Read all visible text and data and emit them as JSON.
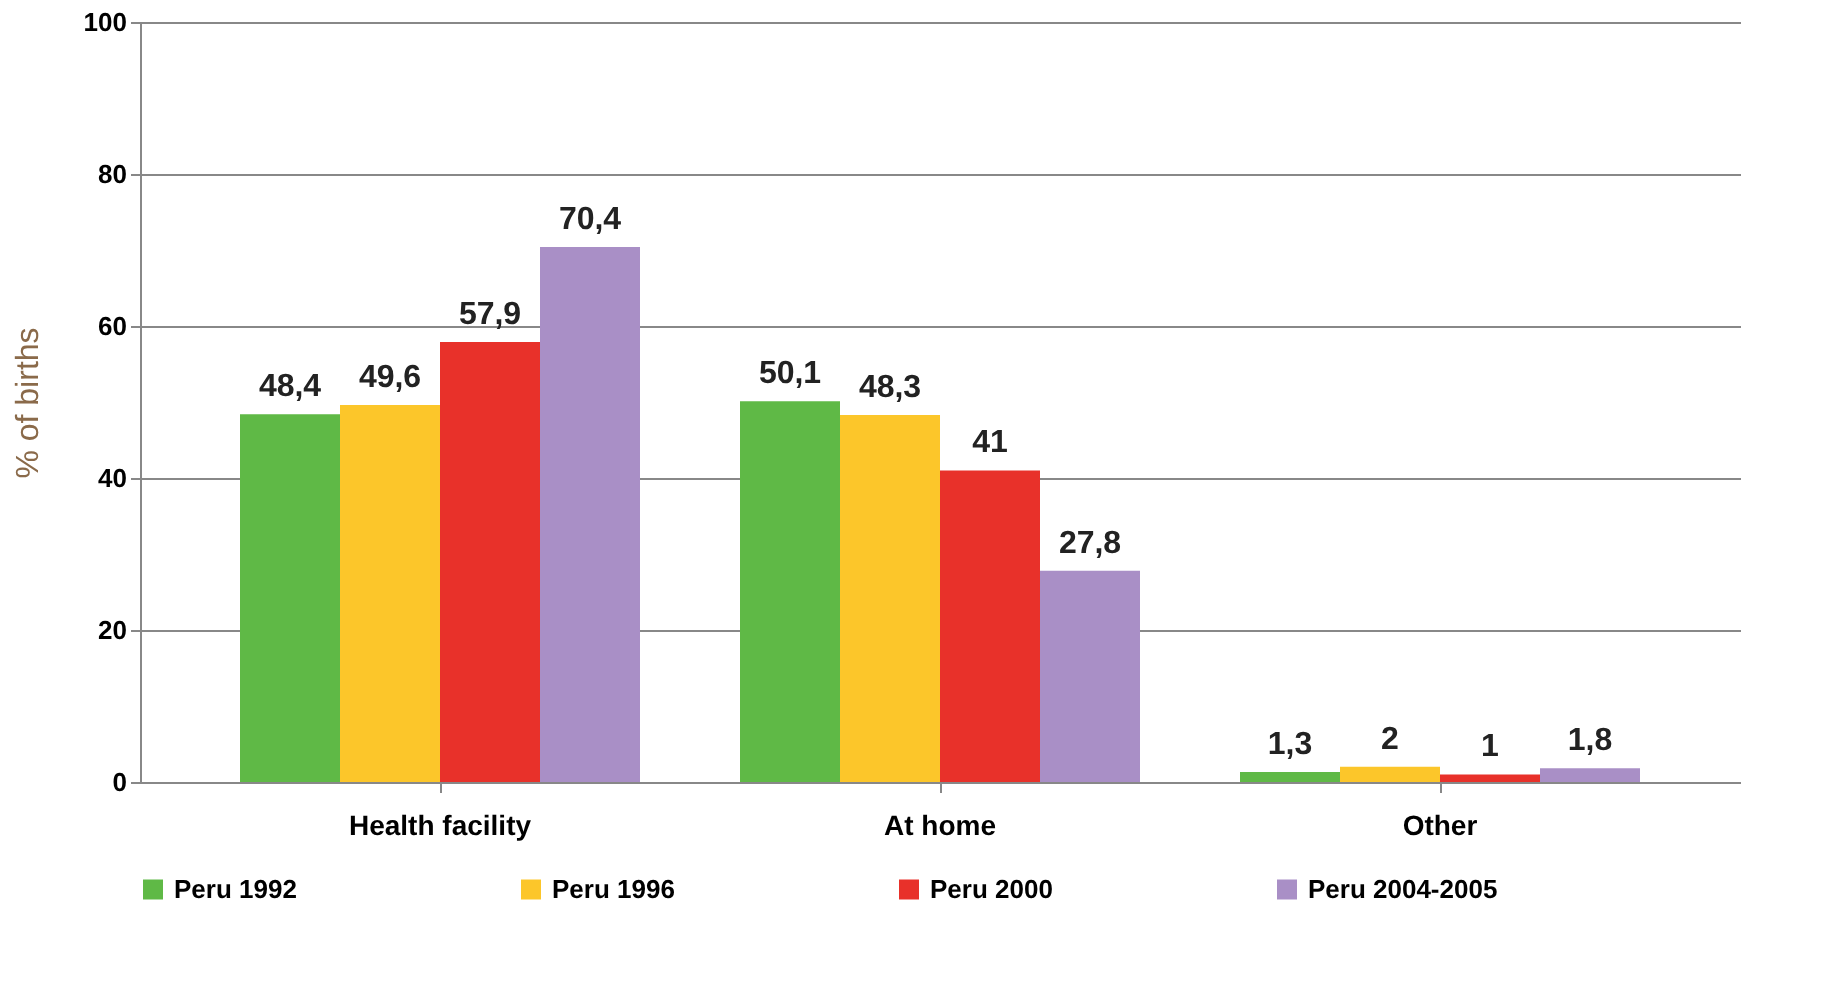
{
  "chart_data": {
    "type": "bar",
    "ylabel": "% of births",
    "categories": [
      "Health facility",
      "At home",
      "Other"
    ],
    "series": [
      {
        "name": "Peru 1992",
        "color": "#5fb946",
        "values": [
          48.4,
          50.1,
          1.3
        ],
        "value_labels": [
          "48,4",
          "50,1",
          "1,3"
        ]
      },
      {
        "name": "Peru 1996",
        "color": "#fcc62a",
        "values": [
          49.6,
          48.3,
          2
        ],
        "value_labels": [
          "49,6",
          "48,3",
          "2"
        ]
      },
      {
        "name": "Peru 2000",
        "color": "#e8312a",
        "values": [
          57.9,
          41,
          1
        ],
        "value_labels": [
          "57,9",
          "41",
          "1"
        ]
      },
      {
        "name": "Peru 2004-2005",
        "color": "#a98fc6",
        "values": [
          70.4,
          27.8,
          1.8
        ],
        "value_labels": [
          "70,4",
          "27,8",
          "1,8"
        ]
      }
    ],
    "ylim": [
      0,
      100
    ],
    "yticks": [
      0,
      20,
      40,
      60,
      80,
      100
    ],
    "grid": "y",
    "legend": "bottom"
  }
}
